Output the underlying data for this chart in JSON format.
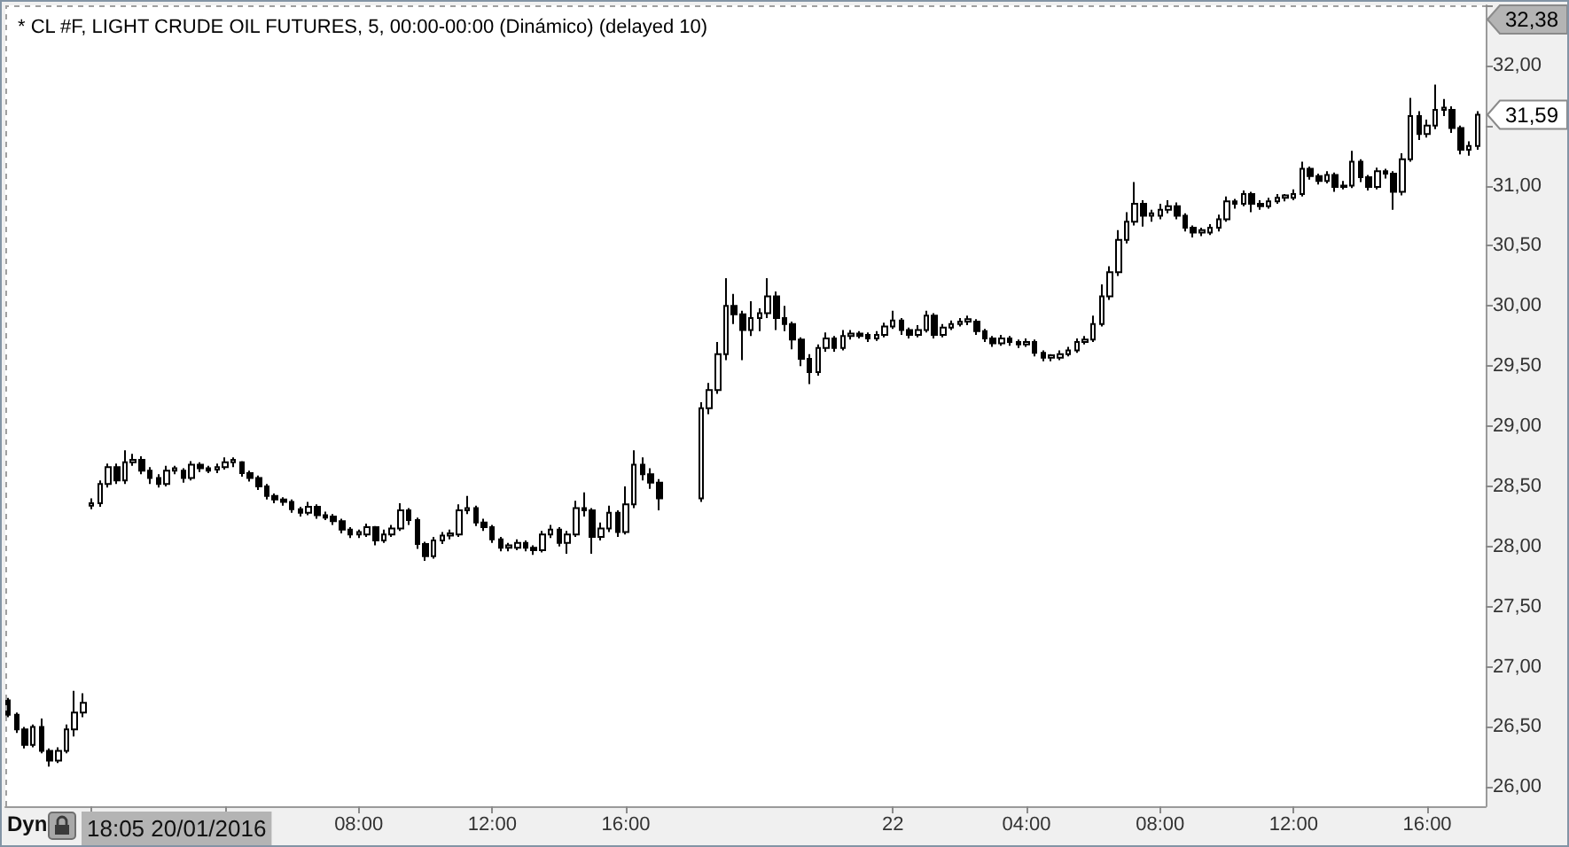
{
  "chart_data": {
    "type": "candlestick",
    "title": "* CL #F, LIGHT CRUDE OIL FUTURES, 5, 00:00-00:00 (Dinámico) (delayed 10)",
    "color": "#000000",
    "x": [
      "2016-01-20T21:30",
      "2016-01-20T21:45",
      "2016-01-20T22:00",
      "2016-01-20T22:15",
      "2016-01-20T22:30",
      "2016-01-20T22:45",
      "2016-01-20T23:00",
      "2016-01-20T23:15",
      "2016-01-20T23:30",
      "2016-01-20T23:45",
      "2016-01-21T00:00",
      "2016-01-21T00:15",
      "2016-01-21T00:30",
      "2016-01-21T00:45",
      "2016-01-21T01:00",
      "2016-01-21T01:15",
      "2016-01-21T01:30",
      "2016-01-21T01:45",
      "2016-01-21T02:00",
      "2016-01-21T02:15",
      "2016-01-21T02:30",
      "2016-01-21T02:45",
      "2016-01-21T03:00",
      "2016-01-21T03:15",
      "2016-01-21T03:30",
      "2016-01-21T03:45",
      "2016-01-21T04:00",
      "2016-01-21T04:15",
      "2016-01-21T04:30",
      "2016-01-21T04:45",
      "2016-01-21T05:00",
      "2016-01-21T05:15",
      "2016-01-21T05:30",
      "2016-01-21T05:45",
      "2016-01-21T06:00",
      "2016-01-21T06:15",
      "2016-01-21T06:30",
      "2016-01-21T06:45",
      "2016-01-21T07:00",
      "2016-01-21T07:15",
      "2016-01-21T07:30",
      "2016-01-21T07:45",
      "2016-01-21T08:00",
      "2016-01-21T08:15",
      "2016-01-21T08:30",
      "2016-01-21T08:45",
      "2016-01-21T09:00",
      "2016-01-21T09:15",
      "2016-01-21T09:30",
      "2016-01-21T09:45",
      "2016-01-21T10:00",
      "2016-01-21T10:15",
      "2016-01-21T10:30",
      "2016-01-21T10:45",
      "2016-01-21T11:00",
      "2016-01-21T11:15",
      "2016-01-21T11:30",
      "2016-01-21T11:45",
      "2016-01-21T12:00",
      "2016-01-21T12:15",
      "2016-01-21T12:30",
      "2016-01-21T12:45",
      "2016-01-21T13:00",
      "2016-01-21T13:15",
      "2016-01-21T13:30",
      "2016-01-21T13:45",
      "2016-01-21T14:00",
      "2016-01-21T14:15",
      "2016-01-21T14:30",
      "2016-01-21T14:45",
      "2016-01-21T15:00",
      "2016-01-21T15:15",
      "2016-01-21T15:30",
      "2016-01-21T15:45",
      "2016-01-21T16:00",
      "2016-01-21T16:15",
      "2016-01-21T16:30",
      "2016-01-21T16:45",
      "2016-01-21T17:00",
      "2016-01-21T18:15",
      "2016-01-21T18:30",
      "2016-01-21T18:45",
      "2016-01-21T19:00",
      "2016-01-21T19:15",
      "2016-01-21T19:30",
      "2016-01-21T19:45",
      "2016-01-21T20:00",
      "2016-01-21T20:15",
      "2016-01-21T20:30",
      "2016-01-21T20:45",
      "2016-01-21T21:00",
      "2016-01-21T21:15",
      "2016-01-21T21:30",
      "2016-01-21T21:45",
      "2016-01-21T22:00",
      "2016-01-21T22:15",
      "2016-01-21T22:30",
      "2016-01-21T22:45",
      "2016-01-21T23:00",
      "2016-01-21T23:15",
      "2016-01-21T23:30",
      "2016-01-21T23:45",
      "2016-01-22T00:00",
      "2016-01-22T00:15",
      "2016-01-22T00:30",
      "2016-01-22T00:45",
      "2016-01-22T01:00",
      "2016-01-22T01:15",
      "2016-01-22T01:30",
      "2016-01-22T01:45",
      "2016-01-22T02:00",
      "2016-01-22T02:15",
      "2016-01-22T02:30",
      "2016-01-22T02:45",
      "2016-01-22T03:00",
      "2016-01-22T03:15",
      "2016-01-22T03:30",
      "2016-01-22T03:45",
      "2016-01-22T04:00",
      "2016-01-22T04:15",
      "2016-01-22T04:30",
      "2016-01-22T04:45",
      "2016-01-22T05:00",
      "2016-01-22T05:15",
      "2016-01-22T05:30",
      "2016-01-22T05:45",
      "2016-01-22T06:00",
      "2016-01-22T06:15",
      "2016-01-22T06:30",
      "2016-01-22T06:45",
      "2016-01-22T07:00",
      "2016-01-22T07:15",
      "2016-01-22T07:30",
      "2016-01-22T07:45",
      "2016-01-22T08:00",
      "2016-01-22T08:15",
      "2016-01-22T08:30",
      "2016-01-22T08:45",
      "2016-01-22T09:00",
      "2016-01-22T09:15",
      "2016-01-22T09:30",
      "2016-01-22T09:45",
      "2016-01-22T10:00",
      "2016-01-22T10:15",
      "2016-01-22T10:30",
      "2016-01-22T10:45",
      "2016-01-22T11:00",
      "2016-01-22T11:15",
      "2016-01-22T11:30",
      "2016-01-22T11:45",
      "2016-01-22T12:00",
      "2016-01-22T12:15",
      "2016-01-22T12:30",
      "2016-01-22T12:45",
      "2016-01-22T13:00",
      "2016-01-22T13:15",
      "2016-01-22T13:30",
      "2016-01-22T13:45",
      "2016-01-22T14:00",
      "2016-01-22T14:15",
      "2016-01-22T14:30",
      "2016-01-22T14:45",
      "2016-01-22T15:00",
      "2016-01-22T15:15",
      "2016-01-22T15:30",
      "2016-01-22T15:45",
      "2016-01-22T16:00",
      "2016-01-22T16:15",
      "2016-01-22T16:30",
      "2016-01-22T16:45",
      "2016-01-22T17:00",
      "2016-01-22T17:15",
      "2016-01-22T17:30"
    ],
    "ohlc": [
      [
        26.72,
        26.74,
        26.58,
        26.6
      ],
      [
        26.6,
        26.62,
        26.45,
        26.48
      ],
      [
        26.48,
        26.5,
        26.32,
        26.35
      ],
      [
        26.35,
        26.52,
        26.33,
        26.5
      ],
      [
        26.5,
        26.57,
        26.28,
        26.3
      ],
      [
        26.3,
        26.32,
        26.17,
        26.22
      ],
      [
        26.22,
        26.33,
        26.2,
        26.3
      ],
      [
        26.3,
        26.52,
        26.28,
        26.48
      ],
      [
        26.48,
        26.8,
        26.42,
        26.62
      ],
      [
        26.62,
        26.78,
        26.58,
        26.7
      ],
      [
        28.34,
        28.4,
        28.31,
        28.36
      ],
      [
        28.36,
        28.55,
        28.33,
        28.52
      ],
      [
        28.52,
        28.69,
        28.49,
        28.66
      ],
      [
        28.66,
        28.69,
        28.52,
        28.55
      ],
      [
        28.55,
        28.8,
        28.52,
        28.7
      ],
      [
        28.7,
        28.77,
        28.67,
        28.72
      ],
      [
        28.72,
        28.75,
        28.6,
        28.63
      ],
      [
        28.63,
        28.66,
        28.52,
        28.57
      ],
      [
        28.57,
        28.6,
        28.49,
        28.52
      ],
      [
        28.52,
        28.67,
        28.5,
        28.63
      ],
      [
        28.63,
        28.67,
        28.6,
        28.65
      ],
      [
        28.63,
        28.65,
        28.53,
        28.57
      ],
      [
        28.57,
        28.71,
        28.55,
        28.68
      ],
      [
        28.68,
        28.7,
        28.62,
        28.65
      ],
      [
        28.65,
        28.67,
        28.61,
        28.63
      ],
      [
        28.64,
        28.69,
        28.61,
        28.66
      ],
      [
        28.66,
        28.74,
        28.64,
        28.7
      ],
      [
        28.7,
        28.74,
        28.66,
        28.72
      ],
      [
        28.7,
        28.71,
        28.58,
        28.61
      ],
      [
        28.61,
        28.63,
        28.54,
        28.57
      ],
      [
        28.57,
        28.59,
        28.47,
        28.5
      ],
      [
        28.5,
        28.52,
        28.39,
        28.42
      ],
      [
        28.42,
        28.44,
        28.36,
        28.39
      ],
      [
        28.39,
        28.41,
        28.34,
        28.37
      ],
      [
        28.37,
        28.39,
        28.28,
        28.31
      ],
      [
        28.31,
        28.33,
        28.25,
        28.28
      ],
      [
        28.28,
        28.37,
        28.26,
        28.33
      ],
      [
        28.33,
        28.35,
        28.23,
        28.26
      ],
      [
        28.26,
        28.29,
        28.22,
        28.24
      ],
      [
        28.25,
        28.27,
        28.18,
        28.21
      ],
      [
        28.21,
        28.23,
        28.11,
        28.14
      ],
      [
        28.14,
        28.16,
        28.07,
        28.1
      ],
      [
        28.1,
        28.14,
        28.07,
        28.12
      ],
      [
        28.1,
        28.19,
        28.08,
        28.16
      ],
      [
        28.16,
        28.17,
        28.01,
        28.05
      ],
      [
        28.05,
        28.14,
        28.03,
        28.1
      ],
      [
        28.1,
        28.18,
        28.08,
        28.15
      ],
      [
        28.15,
        28.36,
        28.13,
        28.3
      ],
      [
        28.3,
        28.32,
        28.18,
        28.22
      ],
      [
        28.22,
        28.24,
        27.98,
        28.02
      ],
      [
        28.02,
        28.04,
        27.88,
        27.92
      ],
      [
        27.92,
        28.08,
        27.9,
        28.05
      ],
      [
        28.05,
        28.12,
        28.02,
        28.09
      ],
      [
        28.09,
        28.14,
        28.06,
        28.11
      ],
      [
        28.1,
        28.35,
        28.08,
        28.3
      ],
      [
        28.3,
        28.42,
        28.27,
        28.32
      ],
      [
        28.32,
        28.34,
        28.17,
        28.2
      ],
      [
        28.2,
        28.23,
        28.13,
        28.16
      ],
      [
        28.16,
        28.18,
        28.03,
        28.06
      ],
      [
        28.06,
        28.08,
        27.96,
        27.99
      ],
      [
        27.99,
        28.03,
        27.96,
        28.01
      ],
      [
        27.99,
        28.06,
        27.97,
        28.03
      ],
      [
        28.03,
        28.05,
        27.96,
        27.99
      ],
      [
        27.99,
        28.01,
        27.93,
        27.97
      ],
      [
        27.97,
        28.13,
        27.95,
        28.1
      ],
      [
        28.1,
        28.18,
        28.07,
        28.14
      ],
      [
        28.14,
        28.16,
        28.0,
        28.03
      ],
      [
        28.03,
        28.13,
        27.94,
        28.1
      ],
      [
        28.1,
        28.38,
        28.08,
        28.32
      ],
      [
        28.32,
        28.45,
        28.25,
        28.3
      ],
      [
        28.3,
        28.32,
        27.94,
        28.08
      ],
      [
        28.08,
        28.2,
        28.05,
        28.15
      ],
      [
        28.15,
        28.34,
        28.12,
        28.28
      ],
      [
        28.28,
        28.3,
        28.08,
        28.12
      ],
      [
        28.12,
        28.5,
        28.1,
        28.35
      ],
      [
        28.35,
        28.8,
        28.32,
        28.68
      ],
      [
        28.68,
        28.74,
        28.55,
        28.6
      ],
      [
        28.6,
        28.65,
        28.48,
        28.53
      ],
      [
        28.53,
        28.56,
        28.3,
        28.4
      ],
      [
        28.4,
        29.2,
        28.37,
        29.15
      ],
      [
        29.15,
        29.36,
        29.1,
        29.3
      ],
      [
        29.3,
        29.7,
        29.27,
        29.6
      ],
      [
        29.6,
        30.23,
        29.55,
        30.0
      ],
      [
        30.0,
        30.1,
        29.85,
        29.93
      ],
      [
        29.93,
        29.96,
        29.55,
        29.8
      ],
      [
        29.8,
        30.04,
        29.75,
        29.9
      ],
      [
        29.9,
        29.98,
        29.79,
        29.94
      ],
      [
        29.94,
        30.23,
        29.9,
        30.08
      ],
      [
        30.08,
        30.12,
        29.8,
        29.9
      ],
      [
        29.9,
        30.0,
        29.79,
        29.85
      ],
      [
        29.85,
        29.87,
        29.64,
        29.72
      ],
      [
        29.72,
        29.74,
        29.5,
        29.56
      ],
      [
        29.56,
        29.6,
        29.35,
        29.45
      ],
      [
        29.45,
        29.68,
        29.42,
        29.65
      ],
      [
        29.65,
        29.78,
        29.62,
        29.73
      ],
      [
        29.73,
        29.75,
        29.62,
        29.65
      ],
      [
        29.65,
        29.8,
        29.63,
        29.75
      ],
      [
        29.75,
        29.8,
        29.72,
        29.77
      ],
      [
        29.77,
        29.79,
        29.73,
        29.75
      ],
      [
        29.76,
        29.78,
        29.7,
        29.73
      ],
      [
        29.73,
        29.79,
        29.71,
        29.76
      ],
      [
        29.76,
        29.86,
        29.74,
        29.83
      ],
      [
        29.83,
        29.96,
        29.81,
        29.88
      ],
      [
        29.88,
        29.9,
        29.76,
        29.8
      ],
      [
        29.8,
        29.82,
        29.73,
        29.76
      ],
      [
        29.76,
        29.84,
        29.74,
        29.8
      ],
      [
        29.8,
        29.96,
        29.78,
        29.92
      ],
      [
        29.92,
        29.94,
        29.73,
        29.76
      ],
      [
        29.76,
        29.85,
        29.74,
        29.82
      ],
      [
        29.82,
        29.88,
        29.8,
        29.85
      ],
      [
        29.85,
        29.9,
        29.83,
        29.87
      ],
      [
        29.87,
        29.92,
        29.84,
        29.89
      ],
      [
        29.87,
        29.89,
        29.76,
        29.79
      ],
      [
        29.79,
        29.81,
        29.7,
        29.73
      ],
      [
        29.73,
        29.75,
        29.66,
        29.69
      ],
      [
        29.69,
        29.76,
        29.67,
        29.73
      ],
      [
        29.73,
        29.75,
        29.67,
        29.7
      ],
      [
        29.7,
        29.72,
        29.65,
        29.68
      ],
      [
        29.68,
        29.73,
        29.66,
        29.7
      ],
      [
        29.7,
        29.72,
        29.58,
        29.61
      ],
      [
        29.61,
        29.63,
        29.54,
        29.57
      ],
      [
        29.57,
        29.6,
        29.54,
        29.59
      ],
      [
        29.57,
        29.63,
        29.55,
        29.6
      ],
      [
        29.6,
        29.66,
        29.58,
        29.63
      ],
      [
        29.63,
        29.73,
        29.61,
        29.7
      ],
      [
        29.7,
        29.75,
        29.68,
        29.72
      ],
      [
        29.72,
        29.92,
        29.7,
        29.85
      ],
      [
        29.85,
        30.18,
        29.83,
        30.08
      ],
      [
        30.08,
        30.33,
        30.05,
        30.28
      ],
      [
        30.28,
        30.63,
        30.25,
        30.55
      ],
      [
        30.55,
        30.78,
        30.52,
        30.7
      ],
      [
        30.7,
        31.03,
        30.67,
        30.85
      ],
      [
        30.85,
        30.88,
        30.66,
        30.75
      ],
      [
        30.75,
        30.8,
        30.7,
        30.77
      ],
      [
        30.75,
        30.85,
        30.72,
        30.8
      ],
      [
        30.8,
        30.88,
        30.77,
        30.83
      ],
      [
        30.83,
        30.86,
        30.72,
        30.75
      ],
      [
        30.75,
        30.77,
        30.62,
        30.65
      ],
      [
        30.65,
        30.67,
        30.57,
        30.61
      ],
      [
        30.61,
        30.65,
        30.58,
        30.63
      ],
      [
        30.61,
        30.68,
        30.59,
        30.65
      ],
      [
        30.65,
        30.76,
        30.62,
        30.72
      ],
      [
        30.72,
        30.91,
        30.7,
        30.87
      ],
      [
        30.87,
        30.89,
        30.81,
        30.85
      ],
      [
        30.85,
        30.96,
        30.83,
        30.93
      ],
      [
        30.93,
        30.95,
        30.78,
        30.85
      ],
      [
        30.85,
        30.88,
        30.8,
        30.83
      ],
      [
        30.83,
        30.9,
        30.81,
        30.87
      ],
      [
        30.87,
        30.93,
        30.85,
        30.9
      ],
      [
        30.9,
        30.93,
        30.87,
        30.92
      ],
      [
        30.9,
        30.97,
        30.88,
        30.93
      ],
      [
        30.93,
        31.2,
        30.91,
        31.14
      ],
      [
        31.14,
        31.16,
        31.05,
        31.08
      ],
      [
        31.08,
        31.1,
        31.01,
        31.04
      ],
      [
        31.04,
        31.12,
        31.02,
        31.09
      ],
      [
        31.09,
        31.11,
        30.95,
        30.99
      ],
      [
        30.99,
        31.04,
        30.97,
        31.0
      ],
      [
        31.0,
        31.29,
        30.98,
        31.2
      ],
      [
        31.2,
        31.22,
        31.03,
        31.07
      ],
      [
        31.07,
        31.09,
        30.96,
        30.99
      ],
      [
        30.99,
        31.15,
        30.97,
        31.12
      ],
      [
        31.12,
        31.14,
        31.06,
        31.1
      ],
      [
        31.1,
        31.12,
        30.8,
        30.95
      ],
      [
        30.95,
        31.27,
        30.92,
        31.22
      ],
      [
        31.22,
        31.73,
        31.2,
        31.58
      ],
      [
        31.58,
        31.62,
        31.38,
        31.43
      ],
      [
        31.43,
        31.55,
        31.4,
        31.5
      ],
      [
        31.5,
        31.84,
        31.47,
        31.63
      ],
      [
        31.63,
        31.72,
        31.58,
        31.65
      ],
      [
        31.63,
        31.66,
        31.44,
        31.48
      ],
      [
        31.48,
        31.5,
        31.26,
        31.3
      ],
      [
        31.3,
        31.37,
        31.25,
        31.33
      ],
      [
        31.33,
        31.62,
        31.3,
        31.59
      ]
    ],
    "xlim": [
      "2016-01-20T21:25",
      "2016-01-22T17:45"
    ],
    "xticks": [
      {
        "value": "2016-01-21",
        "label": null
      },
      {
        "value": "2016-01-21T04:00",
        "label": null
      },
      {
        "value": "2016-01-21T08:00",
        "label": "08:00"
      },
      {
        "value": "2016-01-21T12:00",
        "label": "12:00"
      },
      {
        "value": "2016-01-21T16:00",
        "label": "16:00"
      },
      {
        "value": "2016-01-22",
        "label": "22"
      },
      {
        "value": "2016-01-22T04:00",
        "label": "04:00"
      },
      {
        "value": "2016-01-22T08:00",
        "label": "08:00"
      },
      {
        "value": "2016-01-22T12:00",
        "label": "12:00"
      },
      {
        "value": "2016-01-22T16:00",
        "label": "16:00"
      }
    ],
    "ylim": [
      25.84,
      32.5
    ],
    "yticks": [
      {
        "value": 26,
        "label": "26,00"
      },
      {
        "value": 26.5,
        "label": "26,50"
      },
      {
        "value": 27,
        "label": "27,00"
      },
      {
        "value": 27.5,
        "label": "27,50"
      },
      {
        "value": 28,
        "label": "28,00"
      },
      {
        "value": 28.5,
        "label": "28,50"
      },
      {
        "value": 29,
        "label": "29,00"
      },
      {
        "value": 29.5,
        "label": "29,50"
      },
      {
        "value": 30,
        "label": "30,00"
      },
      {
        "value": 30.5,
        "label": "30,50"
      },
      {
        "value": 31,
        "label": "31,00"
      },
      {
        "value": 31.5,
        "label": null
      },
      {
        "value": 32,
        "label": "32,00"
      },
      {
        "value": 32.5,
        "label": null
      }
    ],
    "annotations": [
      "Dyn",
      "18:05 20/01/2016",
      "32,38",
      {
        "text": "31,59",
        "x": "2016-01-22T17:30",
        "y": 31.59
      }
    ]
  }
}
